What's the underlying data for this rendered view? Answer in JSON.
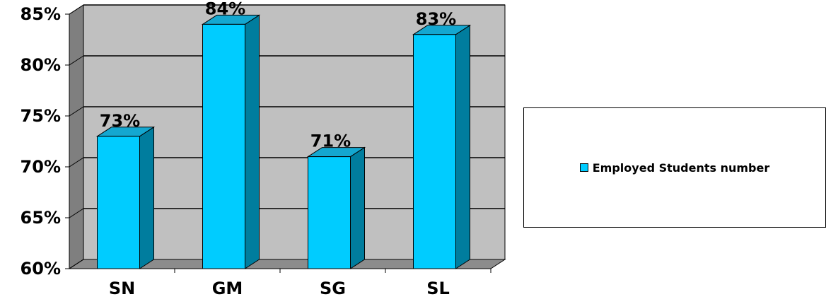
{
  "chart_data": {
    "type": "bar",
    "categories": [
      "SN",
      "GM",
      "SG",
      "SL"
    ],
    "series": [
      {
        "name": "Employed Students number",
        "values": [
          73,
          84,
          71,
          83
        ]
      }
    ],
    "data_labels": [
      "73%",
      "84%",
      "71%",
      "83%"
    ],
    "ylim": [
      60,
      85
    ],
    "yticks": [
      "60%",
      "65%",
      "70%",
      "75%",
      "80%",
      "85%"
    ],
    "ytick_values": [
      60,
      65,
      70,
      75,
      80,
      85
    ],
    "grid": true,
    "legend_position": "right",
    "style": "3d"
  },
  "colors": {
    "bar_front": "#00ccff",
    "bar_side": "#007d9e",
    "bar_top": "#14a7d0",
    "plot_back": "#c0c0c0",
    "plot_wall": "#7f7f7f",
    "plot_floor": "#8c8c8c"
  }
}
